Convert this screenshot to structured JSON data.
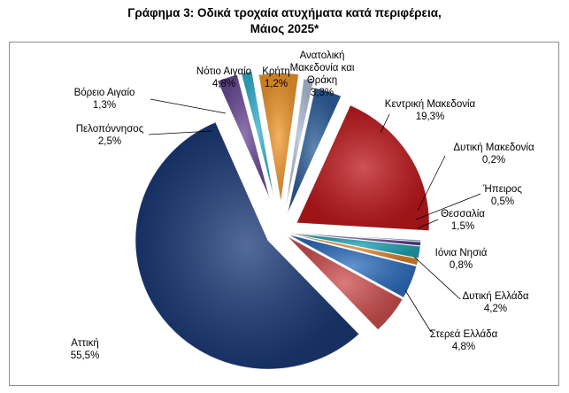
{
  "chart_data": {
    "type": "pie",
    "title_line1": "Γράφημα 3: Οδικά τροχαία ατυχήματα κατά περιφέρεια,",
    "title_line2": "Μάιος 2025*",
    "slices": [
      {
        "label": "Ανατολική Μακεδονία και Θράκη",
        "label_lines": [
          "Ανατολική",
          "Μακεδονία και",
          "Θράκη"
        ],
        "value_text": "3,3%",
        "value": 3.3,
        "color": "#2e5f9c",
        "explode": 22
      },
      {
        "label": "Κεντρική Μακεδονία",
        "label_lines": [
          "Κεντρική Μακεδονία"
        ],
        "value_text": "19,3%",
        "value": 19.3,
        "color": "#c0181c",
        "explode": 20
      },
      {
        "label": "Δυτική Μακεδονία",
        "label_lines": [
          "Δυτική Μακεδονία"
        ],
        "value_text": "0,2%",
        "value": 0.2,
        "color": "#7f9fcf",
        "explode": 8
      },
      {
        "label": "Ήπειρος",
        "label_lines": [
          "Ήπειρος"
        ],
        "value_text": "0,5%",
        "value": 0.5,
        "color": "#5b3f8a",
        "explode": 8
      },
      {
        "label": "Θεσσαλία",
        "label_lines": [
          "Θεσσαλία"
        ],
        "value_text": "1,5%",
        "value": 1.5,
        "color": "#1fa3b5",
        "explode": 8
      },
      {
        "label": "Ιόνια Νησιά",
        "label_lines": [
          "Ιόνια Νησιά"
        ],
        "value_text": "0,8%",
        "value": 0.8,
        "color": "#e0822a",
        "explode": 8
      },
      {
        "label": "Δυτική Ελλάδα",
        "label_lines": [
          "Δυτική Ελλάδα"
        ],
        "value_text": "4,2%",
        "value": 4.2,
        "color": "#2f6fbf",
        "explode": 8
      },
      {
        "label": "Στερεά Ελλάδα",
        "label_lines": [
          "Στερεά Ελλάδα"
        ],
        "value_text": "4,8%",
        "value": 4.8,
        "color": "#cf4f4f",
        "explode": 8
      },
      {
        "label": "Αττική",
        "label_lines": [
          "Αττική"
        ],
        "value_text": "55,5%",
        "value": 55.5,
        "color": "#1b3a78",
        "explode": 18
      },
      {
        "label": "Πελοπόννησος",
        "label_lines": [
          "Πελοπόννησος"
        ],
        "value_text": "2,5%",
        "value": 2.5,
        "color": "#6b4c9a",
        "explode": 40
      },
      {
        "label": "Βόρειο Αιγαίο",
        "label_lines": [
          "Βόρειο Αιγαίο"
        ],
        "value_text": "1,3%",
        "value": 1.3,
        "color": "#35b6d4",
        "explode": 40
      },
      {
        "label": "Νότιο Αιγαίο",
        "label_lines": [
          "Νότιο Αιγαίο"
        ],
        "value_text": "4,8%",
        "value": 4.8,
        "color": "#f39a2e",
        "explode": 35
      },
      {
        "label": "Κρήτη",
        "label_lines": [
          "Κρήτη"
        ],
        "value_text": "1,2%",
        "value": 1.2,
        "color": "#b3c3dd",
        "explode": 30
      }
    ]
  }
}
